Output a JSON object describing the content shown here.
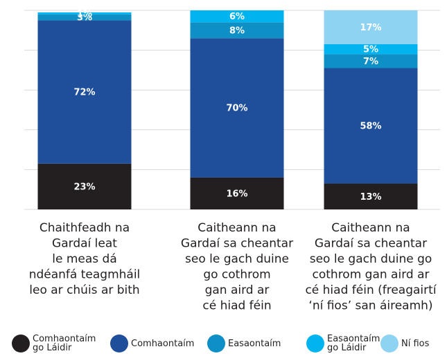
{
  "chart_data": {
    "type": "stacked_bar",
    "categories": [
      [
        "Chaithfeadh na",
        "Gardaí leat",
        "le meas dá",
        "ndéanfá teagmháil",
        "leo ar chúis ar bith"
      ],
      [
        "Caitheann na",
        "Gardaí sa cheantar",
        "seo le gach duine",
        "go cothrom",
        "gan aird ar",
        "cé hiad féin"
      ],
      [
        "Caitheann na",
        "Gardaí sa cheantar",
        "seo le gach duine go",
        "cothrom gan aird ar",
        "cé hiad féin (freagairtí",
        "‘ní fios’ san áireamh)"
      ]
    ],
    "series": [
      {
        "name": "Comhaontaím go Láidir",
        "color": "#231f20",
        "values": [
          23,
          16,
          13
        ],
        "value_labels": [
          "23%",
          "16%",
          "13%"
        ]
      },
      {
        "name": "Comhaontaím",
        "color": "#1f4e9a",
        "values": [
          72,
          70,
          58
        ],
        "value_labels": [
          "72%",
          "70%",
          "58%"
        ]
      },
      {
        "name": "Easaontaím",
        "color": "#0e8fc6",
        "values": [
          3,
          8,
          7
        ],
        "value_labels": [
          "3%",
          "8%",
          "7%"
        ]
      },
      {
        "name": "Easaontaím go Láidir",
        "color": "#00b4ef",
        "values": [
          1,
          6,
          5
        ],
        "value_labels": [
          "1%",
          "6%",
          "5%"
        ]
      },
      {
        "name": "Ní fios",
        "color": "#8fd3f3",
        "values": [
          null,
          null,
          17
        ],
        "value_labels": [
          null,
          null,
          "17%"
        ]
      }
    ],
    "ylim": [
      0,
      100
    ],
    "yticks": [
      0,
      20,
      40,
      60,
      80,
      100
    ],
    "grid": true
  }
}
